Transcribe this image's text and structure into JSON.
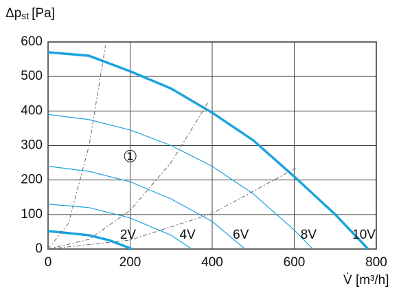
{
  "chart_data": {
    "type": "line",
    "ylabel": {
      "symbol": "Δp",
      "subscript": "st",
      "unit": "[Pa]"
    },
    "xlabel": "V̇ [m³/h]",
    "annotation": "①",
    "annotation_at": [
      200,
      265
    ],
    "xlim": [
      0,
      800
    ],
    "xticks": [
      0,
      200,
      400,
      600,
      800
    ],
    "ylim": [
      0,
      600
    ],
    "yticks": [
      0,
      100,
      200,
      300,
      400,
      500,
      600
    ],
    "grid": true,
    "series": [
      {
        "name": "2V",
        "color": "#1aa3dd",
        "style": "thick",
        "x": [
          0,
          100,
          150,
          205
        ],
        "values": [
          52,
          40,
          25,
          0
        ]
      },
      {
        "name": "4V",
        "color": "#1aa3dd",
        "style": "thin",
        "x": [
          0,
          100,
          200,
          300,
          350
        ],
        "values": [
          130,
          120,
          90,
          40,
          0
        ]
      },
      {
        "name": "6V",
        "color": "#1aa3dd",
        "style": "thin",
        "x": [
          0,
          100,
          200,
          300,
          400,
          480
        ],
        "values": [
          240,
          225,
          195,
          145,
          80,
          0
        ]
      },
      {
        "name": "8V",
        "color": "#1aa3dd",
        "style": "thin",
        "x": [
          0,
          100,
          200,
          300,
          400,
          500,
          600,
          645
        ],
        "values": [
          390,
          375,
          345,
          300,
          240,
          160,
          55,
          0
        ]
      },
      {
        "name": "10V",
        "color": "#1aa3dd",
        "style": "thick",
        "x": [
          0,
          100,
          200,
          300,
          400,
          500,
          600,
          700,
          780
        ],
        "values": [
          570,
          560,
          515,
          465,
          395,
          315,
          210,
          100,
          0
        ]
      },
      {
        "color": "#666666",
        "style": "dashed",
        "x": [
          0,
          50,
          100,
          140
        ],
        "values": [
          0,
          75,
          300,
          590
        ]
      },
      {
        "color": "#666666",
        "style": "dashed",
        "x": [
          0,
          100,
          200,
          300,
          390
        ],
        "values": [
          0,
          28,
          112,
          251,
          425
        ]
      },
      {
        "color": "#666666",
        "style": "dashed",
        "x": [
          0,
          200,
          400,
          605
        ],
        "values": [
          0,
          26,
          103,
          235
        ]
      }
    ]
  }
}
